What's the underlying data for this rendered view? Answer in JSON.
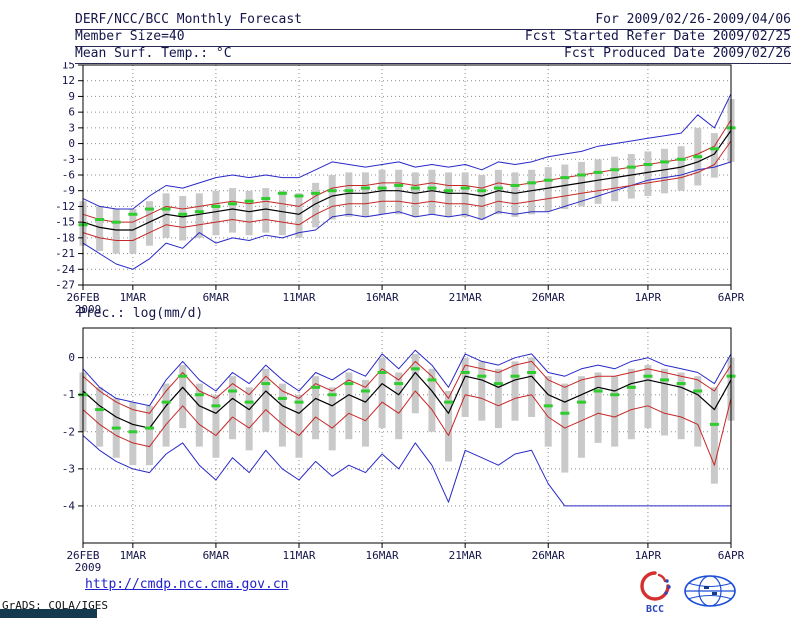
{
  "header": {
    "title": "DERF/NCC/BCC Monthly Forecast",
    "for_range": "For 2009/02/26-2009/04/06",
    "member_size": "Member Size=40",
    "fcst_started": "Fcst Started Refer Date 2009/02/25",
    "var_label": "Mean Surf. Temp.: °C",
    "fcst_produced": "Fcst Produced Date 2009/02/26"
  },
  "footer": {
    "link": "http://cmdp.ncc.cma.gov.cn",
    "grads_credit": "GrADS: COLA/IGES",
    "logo_bcc_label": "BCC"
  },
  "colors": {
    "grid": "#8c8c8c",
    "axis_text": "#15154a",
    "border": "#000000",
    "bar": "#c9c9c9",
    "blue": "#2929c8",
    "red": "#c62828",
    "black": "#000000",
    "green": "#2ecc2e",
    "link": "#2222cc"
  },
  "chart_data": [
    {
      "type": "line",
      "title": "Mean Surf. Temp.: °C",
      "n_points": 40,
      "x_tick_labels": [
        "26FEB",
        "1MAR",
        "6MAR",
        "11MAR",
        "16MAR",
        "21MAR",
        "26MAR",
        "1APR",
        "6APR"
      ],
      "x_tick_indices": [
        0,
        3,
        8,
        13,
        18,
        23,
        28,
        34,
        39
      ],
      "x_year_label": "2009",
      "ylim": [
        -27,
        15
      ],
      "yticks": [
        15,
        12,
        9,
        6,
        3,
        0,
        -3,
        -6,
        -9,
        -12,
        -15,
        -18,
        -21,
        -24,
        -27
      ],
      "grid": "dotted",
      "bars": {
        "color": "#c9c9c9",
        "low": [
          -19.5,
          -20.5,
          -21,
          -21,
          -19.5,
          -18,
          -18.5,
          -18,
          -17.5,
          -17,
          -17.5,
          -17,
          -17.5,
          -18,
          -16,
          -14.5,
          -14,
          -14,
          -13.5,
          -13.5,
          -14,
          -13.5,
          -14,
          -14,
          -14.5,
          -13.5,
          -14,
          -13.5,
          -13,
          -12.5,
          -12,
          -11.5,
          -11,
          -10.5,
          -10,
          -9.5,
          -9,
          -8,
          -6.5,
          -3.5
        ],
        "high": [
          -11,
          -12,
          -12.5,
          -12.5,
          -11,
          -9.5,
          -10,
          -9.5,
          -9,
          -8.5,
          -9,
          -8.5,
          -9,
          -9.5,
          -7.5,
          -6,
          -5.5,
          -5.5,
          -5,
          -5,
          -5.5,
          -5,
          -5.5,
          -5.5,
          -6,
          -5,
          -5.5,
          -5,
          -4.5,
          -4,
          -3.5,
          -3,
          -2.5,
          -2,
          -1.5,
          -1,
          -0.5,
          3,
          2,
          8.5
        ]
      },
      "series": [
        {
          "name": "ensemble-min",
          "style": "line",
          "color": "#2929c8",
          "width": 1,
          "values": [
            -19,
            -21,
            -23,
            -24,
            -22,
            -19,
            -20,
            -17,
            -19,
            -18,
            -18.5,
            -17.5,
            -18,
            -17,
            -16.5,
            -14,
            -13.5,
            -14,
            -13.5,
            -13,
            -14,
            -13.5,
            -14,
            -13.5,
            -14.5,
            -13,
            -13.5,
            -13,
            -13,
            -12,
            -11,
            -10,
            -9,
            -8,
            -7,
            -6.5,
            -6,
            -5,
            -4.5,
            -3.5
          ]
        },
        {
          "name": "ensemble-max",
          "style": "line",
          "color": "#2929c8",
          "width": 1,
          "values": [
            -10.5,
            -12,
            -12.5,
            -12.5,
            -10,
            -8,
            -8.5,
            -7.5,
            -6.5,
            -6,
            -6.5,
            -6,
            -6.5,
            -6.5,
            -5,
            -3.5,
            -4,
            -4.5,
            -4,
            -3.5,
            -4.5,
            -4,
            -4.5,
            -4,
            -5,
            -3.5,
            -4,
            -3.5,
            -2.5,
            -2,
            -1.5,
            -0.5,
            0,
            0.5,
            1,
            1.5,
            2,
            5.5,
            3,
            9.5
          ]
        },
        {
          "name": "minus-sigma",
          "style": "line",
          "color": "#c62828",
          "width": 1,
          "values": [
            -17,
            -18,
            -18.5,
            -18.5,
            -17,
            -15.5,
            -16,
            -15.5,
            -15,
            -14.5,
            -15,
            -14.5,
            -15,
            -15.5,
            -13.5,
            -12,
            -11.5,
            -11.5,
            -11,
            -11,
            -11.5,
            -11,
            -11.5,
            -11.5,
            -12,
            -11,
            -11.5,
            -11,
            -10.5,
            -10,
            -9.5,
            -9,
            -8.5,
            -8,
            -7.5,
            -7,
            -6.5,
            -5.5,
            -4,
            0.5
          ]
        },
        {
          "name": "plus-sigma",
          "style": "line",
          "color": "#c62828",
          "width": 1,
          "values": [
            -13.5,
            -14.5,
            -15,
            -15,
            -13.5,
            -12,
            -12.5,
            -12,
            -11.5,
            -11,
            -11.5,
            -11,
            -11.5,
            -12,
            -10,
            -8.5,
            -8,
            -8,
            -7.5,
            -7.5,
            -8,
            -7.5,
            -8,
            -8,
            -8.5,
            -7.5,
            -8,
            -7.5,
            -7,
            -6.5,
            -6,
            -5.5,
            -5,
            -4.5,
            -4,
            -3.5,
            -3,
            -2,
            -0.5,
            4.5
          ]
        },
        {
          "name": "ensemble-mean",
          "style": "line",
          "color": "#000000",
          "width": 1.2,
          "values": [
            -15,
            -16,
            -16.5,
            -16.5,
            -15,
            -13.5,
            -14,
            -13.5,
            -13,
            -12.5,
            -13,
            -12.5,
            -13,
            -13.5,
            -11.5,
            -10,
            -9.5,
            -9.5,
            -9,
            -9,
            -9.5,
            -9,
            -9.5,
            -9.5,
            -10,
            -9,
            -9.5,
            -9,
            -8.5,
            -8,
            -7.5,
            -7,
            -6.5,
            -6,
            -5.5,
            -5,
            -4.5,
            -3.5,
            -2,
            2.5
          ]
        },
        {
          "name": "median-markers",
          "style": "dashes",
          "color": "#2ecc2e",
          "values": [
            -15.5,
            -14.5,
            -15,
            -13.5,
            -12.5,
            -12.5,
            -13.5,
            -13,
            -12,
            -11.5,
            -11,
            -10.5,
            -9.5,
            -10,
            -9.5,
            -9,
            -9,
            -8.5,
            -8.5,
            -8,
            -8.5,
            -8.5,
            -9,
            -8.5,
            -9,
            -8.5,
            -8,
            -7.5,
            -7,
            -6.5,
            -6,
            -5.5,
            -5,
            -4.5,
            -4,
            -3.5,
            -3,
            -2.5,
            -1,
            3
          ]
        }
      ]
    },
    {
      "type": "line",
      "title": "Prec.: log(mm/d)",
      "n_points": 40,
      "x_tick_labels": [
        "26FEB",
        "1MAR",
        "6MAR",
        "11MAR",
        "16MAR",
        "21MAR",
        "26MAR",
        "1APR",
        "6APR"
      ],
      "x_tick_indices": [
        0,
        3,
        8,
        13,
        18,
        23,
        28,
        34,
        39
      ],
      "x_year_label": "2009",
      "ylim": [
        -5.0,
        0.8
      ],
      "yticks": [
        0,
        -1,
        -2,
        -3,
        -4
      ],
      "grid": "dotted",
      "bars": {
        "color": "#c9c9c9",
        "low": [
          -2.0,
          -2.4,
          -2.7,
          -2.9,
          -2.9,
          -2.4,
          -1.9,
          -2.4,
          -2.7,
          -2.2,
          -2.5,
          -2.0,
          -2.4,
          -2.7,
          -2.2,
          -2.5,
          -2.2,
          -2.4,
          -1.9,
          -2.2,
          -1.5,
          -2.0,
          -2.8,
          -1.6,
          -1.7,
          -1.9,
          -1.7,
          -1.6,
          -2.4,
          -3.1,
          -2.7,
          -2.3,
          -2.4,
          -2.2,
          -1.9,
          -2.1,
          -2.2,
          -2.4,
          -3.4,
          -1.7
        ],
        "high": [
          -0.4,
          -0.8,
          -1.1,
          -1.2,
          -1.3,
          -0.7,
          -0.2,
          -0.7,
          -1.0,
          -0.5,
          -0.8,
          -0.3,
          -0.7,
          -1.0,
          -0.5,
          -0.8,
          -0.4,
          -0.6,
          0.0,
          -0.4,
          0.1,
          -0.3,
          -0.9,
          0.0,
          -0.1,
          -0.3,
          -0.1,
          0.0,
          -0.5,
          -0.7,
          -0.5,
          -0.4,
          -0.5,
          -0.3,
          -0.2,
          -0.3,
          -0.4,
          -0.5,
          -0.8,
          0.0
        ]
      },
      "series": [
        {
          "name": "ensemble-min",
          "style": "line",
          "color": "#2929c8",
          "width": 1,
          "values": [
            -2.1,
            -2.5,
            -2.8,
            -3.0,
            -3.1,
            -2.6,
            -2.3,
            -2.9,
            -3.3,
            -2.7,
            -3.1,
            -2.5,
            -3.0,
            -3.3,
            -2.8,
            -3.2,
            -2.9,
            -3.1,
            -2.6,
            -3.0,
            -2.3,
            -2.9,
            -3.9,
            -2.5,
            -2.7,
            -2.9,
            -2.6,
            -2.5,
            -3.4,
            -4.0,
            -4.0,
            -4.0,
            -4.0,
            -4.0,
            -4.0,
            -4.0,
            -4.0,
            -4.0,
            -4.0,
            -4.0
          ]
        },
        {
          "name": "ensemble-max",
          "style": "line",
          "color": "#2929c8",
          "width": 1,
          "values": [
            -0.3,
            -0.8,
            -1.1,
            -1.2,
            -1.3,
            -0.6,
            -0.1,
            -0.6,
            -0.9,
            -0.4,
            -0.7,
            -0.2,
            -0.6,
            -0.9,
            -0.4,
            -0.6,
            -0.3,
            -0.5,
            0.1,
            -0.3,
            0.2,
            -0.2,
            -0.8,
            0.1,
            -0.1,
            -0.2,
            0.0,
            0.1,
            -0.4,
            -0.5,
            -0.3,
            -0.2,
            -0.3,
            -0.1,
            0.0,
            -0.2,
            -0.3,
            -0.4,
            -0.7,
            0.1
          ]
        },
        {
          "name": "minus-sigma",
          "style": "line",
          "color": "#c62828",
          "width": 1,
          "values": [
            -1.4,
            -1.8,
            -2.1,
            -2.3,
            -2.4,
            -1.8,
            -1.3,
            -1.8,
            -2.1,
            -1.6,
            -1.9,
            -1.4,
            -1.8,
            -2.1,
            -1.6,
            -1.9,
            -1.5,
            -1.7,
            -1.2,
            -1.5,
            -0.9,
            -1.4,
            -2.1,
            -1.0,
            -1.1,
            -1.3,
            -1.1,
            -1.0,
            -1.6,
            -1.9,
            -1.7,
            -1.5,
            -1.6,
            -1.4,
            -1.3,
            -1.5,
            -1.6,
            -1.8,
            -2.9,
            -1.1
          ]
        },
        {
          "name": "plus-sigma",
          "style": "line",
          "color": "#c62828",
          "width": 1,
          "values": [
            -0.5,
            -0.9,
            -1.2,
            -1.4,
            -1.5,
            -0.9,
            -0.4,
            -0.9,
            -1.1,
            -0.7,
            -1.0,
            -0.5,
            -0.9,
            -1.1,
            -0.7,
            -0.9,
            -0.6,
            -0.8,
            -0.3,
            -0.6,
            -0.1,
            -0.5,
            -1.1,
            -0.2,
            -0.3,
            -0.4,
            -0.2,
            -0.1,
            -0.6,
            -0.8,
            -0.6,
            -0.5,
            -0.5,
            -0.4,
            -0.3,
            -0.4,
            -0.5,
            -0.6,
            -0.9,
            -0.2
          ]
        },
        {
          "name": "ensemble-mean",
          "style": "line",
          "color": "#000000",
          "width": 1.2,
          "values": [
            -0.9,
            -1.3,
            -1.6,
            -1.8,
            -1.9,
            -1.3,
            -0.8,
            -1.3,
            -1.5,
            -1.1,
            -1.4,
            -0.9,
            -1.3,
            -1.5,
            -1.1,
            -1.3,
            -1.0,
            -1.2,
            -0.7,
            -1.0,
            -0.4,
            -0.9,
            -1.5,
            -0.5,
            -0.6,
            -0.8,
            -0.6,
            -0.5,
            -1.0,
            -1.2,
            -1.0,
            -0.8,
            -0.9,
            -0.7,
            -0.6,
            -0.7,
            -0.8,
            -1.0,
            -1.4,
            -0.6
          ]
        },
        {
          "name": "median-markers",
          "style": "dashes",
          "color": "#2ecc2e",
          "values": [
            -1.0,
            -1.4,
            -1.9,
            -2.0,
            -1.9,
            -1.2,
            -0.5,
            -1.0,
            -1.3,
            -0.9,
            -1.2,
            -0.7,
            -1.1,
            -1.2,
            -0.8,
            -1.0,
            -0.7,
            -0.9,
            -0.4,
            -0.7,
            -0.3,
            -0.6,
            -1.2,
            -0.4,
            -0.5,
            -0.7,
            -0.5,
            -0.4,
            -1.3,
            -1.5,
            -1.2,
            -0.9,
            -1.0,
            -0.8,
            -0.5,
            -0.6,
            -0.7,
            -0.9,
            -1.8,
            -0.5
          ]
        }
      ]
    }
  ]
}
